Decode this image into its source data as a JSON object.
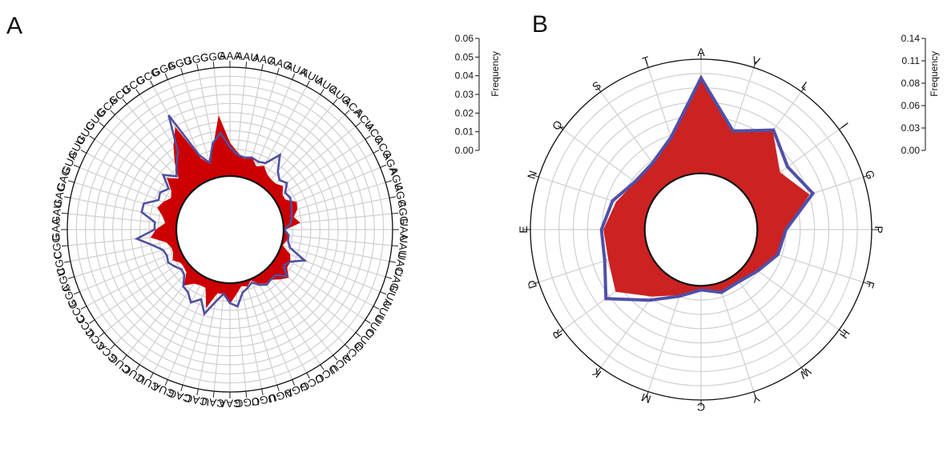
{
  "chart_data": [
    {
      "panel": "A",
      "type": "radar",
      "ylabel": "Frequency",
      "ylim": [
        0,
        0.06
      ],
      "yticks": [
        "0.06",
        "0.05",
        "0.04",
        "0.03",
        "0.02",
        "0.01",
        "0.00"
      ],
      "grid": true,
      "inner_hole_radius_fraction": 0.33,
      "categories": [
        "AAA",
        "AAU",
        "AAC",
        "AAG",
        "AUA",
        "AUU",
        "AUC",
        "AUG",
        "ACA",
        "ACU",
        "ACC",
        "ACG",
        "AGA",
        "AGU",
        "AGC",
        "AGG",
        "UAA",
        "UAU",
        "UAC",
        "UAG",
        "UUA",
        "UUU",
        "UUC",
        "UUG",
        "UCA",
        "UCU",
        "UCC",
        "UCG",
        "UGA",
        "UGU",
        "UGC",
        "UGG",
        "CAA",
        "CAU",
        "CAC",
        "CAG",
        "CUA",
        "CUU",
        "CUC",
        "CUG",
        "CCA",
        "CCU",
        "CCC",
        "CCG",
        "CGA",
        "CGU",
        "CGC",
        "CGG",
        "GAA",
        "GAU",
        "GAC",
        "GAG",
        "GUA",
        "GUU",
        "GUC",
        "GUG",
        "GCA",
        "GCU",
        "GCC",
        "GCG",
        "GGA",
        "GGU",
        "GGC",
        "GGG"
      ],
      "series": [
        {
          "style": "filled",
          "color": "#cc0000",
          "values": [
            0.018,
            0.013,
            0.01,
            0.012,
            0.008,
            0.01,
            0.007,
            0.006,
            0.006,
            0.008,
            0.005,
            0.005,
            0.01,
            0.009,
            0.006,
            0.009,
            0.0005,
            0.003,
            0.002,
            0.0005,
            0.006,
            0.008,
            0.008,
            0.012,
            0.009,
            0.006,
            0.006,
            0.004,
            0.0005,
            0.003,
            0.002,
            0.006,
            0.011,
            0.006,
            0.006,
            0.015,
            0.005,
            0.005,
            0.006,
            0.01,
            0.004,
            0.003,
            0.003,
            0.006,
            0.004,
            0.004,
            0.006,
            0.014,
            0.011,
            0.006,
            0.008,
            0.012,
            0.01,
            0.007,
            0.009,
            0.015,
            0.01,
            0.018,
            0.026,
            0.034,
            0.013,
            0.008,
            0.017,
            0.033
          ]
        },
        {
          "style": "outline",
          "color": "#5050a0",
          "values": [
            0.016,
            0.012,
            0.011,
            0.012,
            0.011,
            0.012,
            0.02,
            0.012,
            0.009,
            0.011,
            0.007,
            0.008,
            0.007,
            0.006,
            0.005,
            0.004,
            0.0005,
            0.003,
            0.003,
            0.005,
            0.015,
            0.008,
            0.006,
            0.011,
            0.006,
            0.006,
            0.007,
            0.005,
            0.002,
            0.004,
            0.006,
            0.013,
            0.011,
            0.006,
            0.011,
            0.019,
            0.012,
            0.016,
            0.012,
            0.011,
            0.006,
            0.005,
            0.007,
            0.009,
            0.008,
            0.009,
            0.014,
            0.022,
            0.012,
            0.012,
            0.02,
            0.02,
            0.013,
            0.014,
            0.011,
            0.018,
            0.012,
            0.017,
            0.022,
            0.042,
            0.015,
            0.009,
            0.019,
            0.024
          ]
        }
      ]
    },
    {
      "panel": "B",
      "type": "radar",
      "ylabel": "Frequency",
      "ylim": [
        0,
        0.14
      ],
      "yticks": [
        "0.14",
        "0.11",
        "0.08",
        "0.06",
        "0.03",
        "0.00"
      ],
      "grid": true,
      "inner_hole_radius_fraction": 0.33,
      "categories": [
        "A",
        "V",
        "L",
        "I",
        "G",
        "P",
        "F",
        "H",
        "W",
        "Y",
        "C",
        "M",
        "K",
        "R",
        "D",
        "E",
        "N",
        "Q",
        "S",
        "T"
      ],
      "series": [
        {
          "style": "filled",
          "color": "#cc2222",
          "values": [
            0.117,
            0.06,
            0.08,
            0.05,
            0.07,
            0.035,
            0.03,
            0.015,
            0.01,
            0.012,
            0.005,
            0.015,
            0.032,
            0.06,
            0.05,
            0.05,
            0.04,
            0.03,
            0.03,
            0.052
          ]
        },
        {
          "style": "outline",
          "color": "#5050a8",
          "values": [
            0.117,
            0.058,
            0.082,
            0.062,
            0.075,
            0.035,
            0.03,
            0.017,
            0.01,
            0.012,
            0.005,
            0.017,
            0.038,
            0.075,
            0.055,
            0.053,
            0.045,
            0.031,
            0.032,
            0.05
          ]
        }
      ]
    }
  ],
  "panels": {
    "a_label": "A",
    "b_label": "B"
  }
}
